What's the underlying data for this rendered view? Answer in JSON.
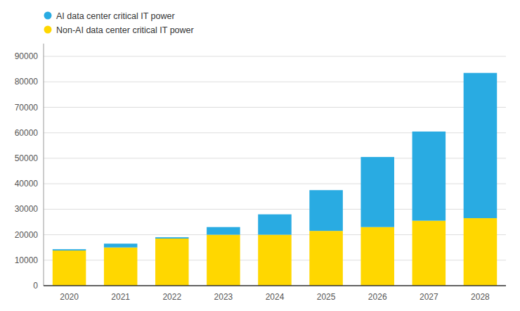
{
  "chart_data": {
    "type": "bar",
    "stacked": true,
    "categories": [
      "2020",
      "2021",
      "2022",
      "2023",
      "2024",
      "2025",
      "2026",
      "2027",
      "2028"
    ],
    "series": [
      {
        "name": "Non-AI data center critical IT power",
        "color": "#FFD700",
        "values": [
          13800,
          15000,
          18500,
          20000,
          20000,
          21500,
          23000,
          25500,
          26500
        ]
      },
      {
        "name": "AI data center critical IT power",
        "color": "#29ABE2",
        "values": [
          500,
          1500,
          500,
          3000,
          8000,
          16000,
          27500,
          35000,
          57000
        ]
      }
    ],
    "ylim": [
      0,
      95000
    ],
    "yticks": [
      0,
      10000,
      20000,
      30000,
      40000,
      50000,
      60000,
      70000,
      80000,
      90000
    ],
    "grid": true,
    "legend": "upper left"
  }
}
